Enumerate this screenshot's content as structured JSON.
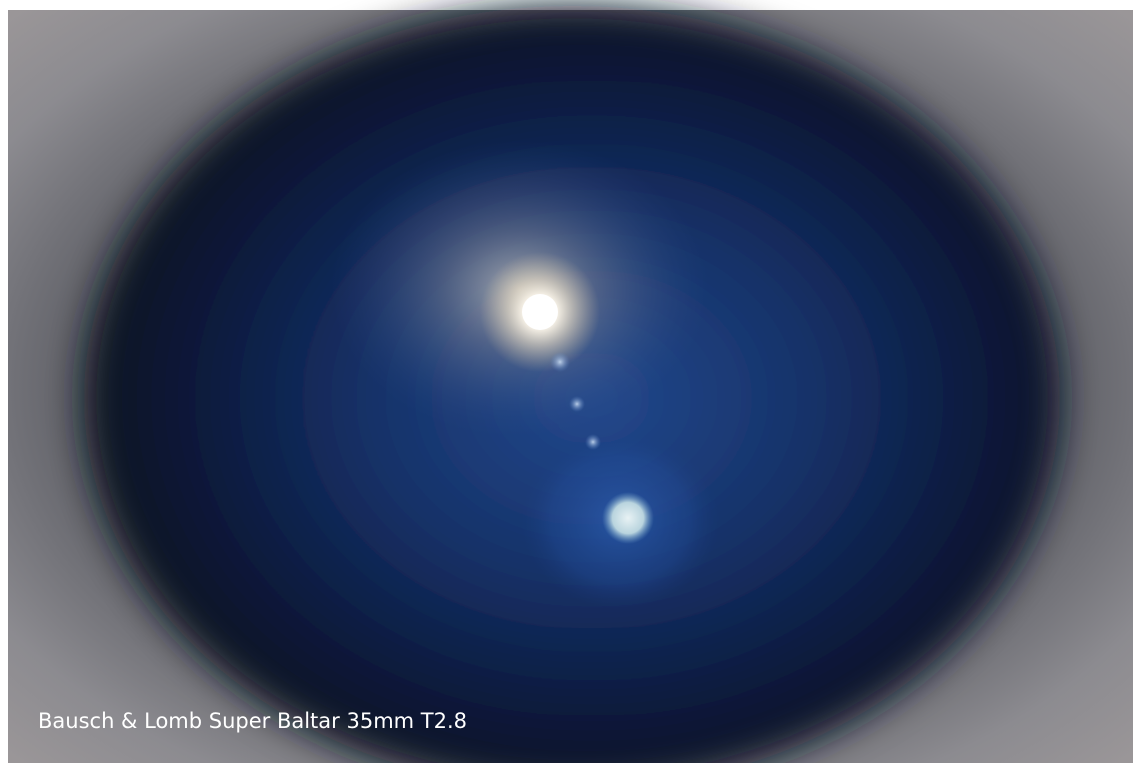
{
  "caption": "Bausch & Lomb Super Baltar 35mm T2.8"
}
